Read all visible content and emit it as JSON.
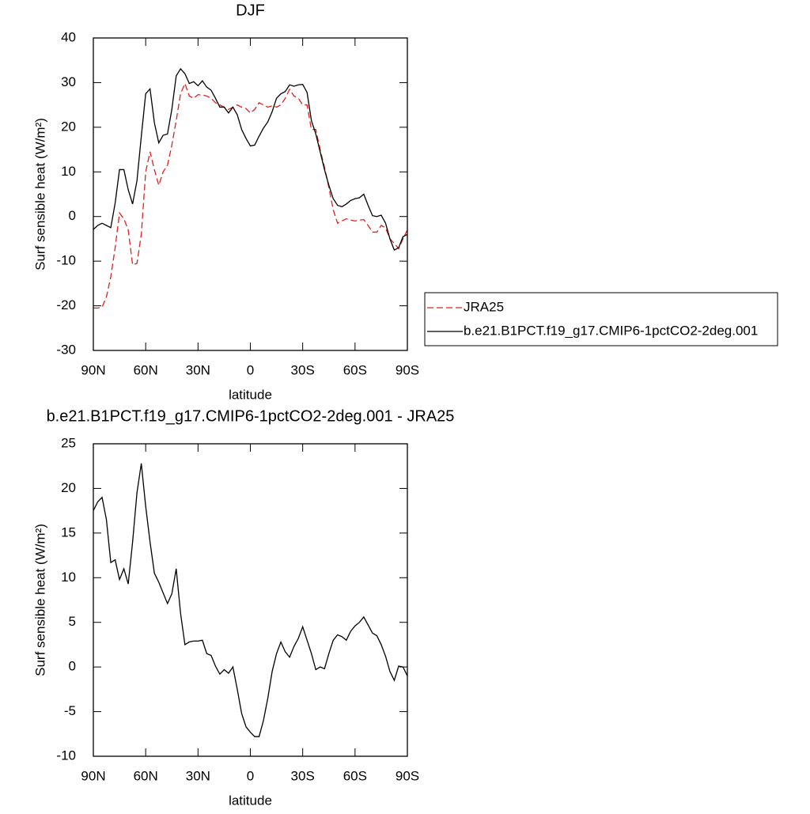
{
  "chart_data": [
    {
      "type": "line",
      "title": "DJF",
      "xlabel": "latitude",
      "ylabel": "Surf sensible heat (W/m²)",
      "x": [
        90,
        87.5,
        85,
        82.5,
        80,
        77.5,
        75,
        72.5,
        70,
        67.5,
        65,
        62.5,
        60,
        57.5,
        55,
        52.5,
        50,
        47.5,
        45,
        42.5,
        40,
        37.5,
        35,
        32.5,
        30,
        27.5,
        25,
        22.5,
        20,
        17.5,
        15,
        12.5,
        10,
        7.5,
        5,
        2.5,
        0,
        -2.5,
        -5,
        -7.5,
        -10,
        -12.5,
        -15,
        -17.5,
        -20,
        -22.5,
        -25,
        -27.5,
        -30,
        -32.5,
        -35,
        -37.5,
        -40,
        -42.5,
        -45,
        -47.5,
        -50,
        -52.5,
        -55,
        -57.5,
        -60,
        -62.5,
        -65,
        -67.5,
        -70,
        -72.5,
        -75,
        -77.5,
        -80,
        -82.5,
        -85,
        -87.5,
        -90
      ],
      "xlim": [
        90,
        -90
      ],
      "xticks": [
        {
          "value": 90,
          "label": "90N"
        },
        {
          "value": 60,
          "label": "60N"
        },
        {
          "value": 30,
          "label": "30N"
        },
        0,
        {
          "value": -30,
          "label": "30S"
        },
        {
          "value": -60,
          "label": "60S"
        },
        {
          "value": -90,
          "label": "90S"
        }
      ],
      "ylim": [
        -30,
        40
      ],
      "yticks": [
        -30,
        -20,
        -10,
        0,
        10,
        20,
        30,
        40
      ],
      "series": [
        {
          "name": "JRA25",
          "color": "#e0201e",
          "dash": true,
          "values": [
            -20.5,
            -20.5,
            -20.3,
            -18,
            -13.5,
            -7,
            0.8,
            -0.5,
            -3,
            -10.8,
            -10.5,
            -4,
            10,
            14.5,
            10.5,
            7,
            10,
            11.5,
            16,
            21.5,
            27.5,
            29.8,
            27,
            26.5,
            27.3,
            27.2,
            27,
            26.5,
            25.5,
            25,
            24.5,
            24,
            24.5,
            25,
            24.5,
            24.2,
            23.2,
            24,
            25.5,
            25,
            24.5,
            24.8,
            24.5,
            25,
            26.5,
            28.5,
            27,
            26.5,
            25,
            25,
            19.5,
            19.5,
            15,
            11,
            6.5,
            1.5,
            -1.5,
            -1,
            -0.5,
            -0.8,
            -1,
            -0.8,
            -0.7,
            -2,
            -3.5,
            -3.5,
            -2,
            -2.5,
            -5,
            -6,
            -7.2,
            -5,
            -3
          ]
        },
        {
          "name": "b.e21.B1PCT.f19_g17.CMIP6-1pctCO2-2deg.001",
          "color": "#000000",
          "dash": false,
          "values": [
            -2.9,
            -2,
            -1.5,
            -2,
            -2.5,
            3,
            10.5,
            10.5,
            6,
            2.8,
            8,
            18,
            27.5,
            28.6,
            21,
            16.5,
            18.2,
            18.5,
            24,
            31.5,
            33.1,
            32,
            29.8,
            30.2,
            29.3,
            30.4,
            29,
            28.3,
            26.5,
            24.5,
            24.5,
            23.2,
            24.5,
            22.8,
            19.5,
            17.5,
            15.8,
            16,
            18,
            19.8,
            21.2,
            23.5,
            26.5,
            27.5,
            28,
            29.5,
            29.2,
            29.5,
            29.6,
            27.8,
            21.5,
            18.5,
            14.5,
            10.5,
            7,
            4,
            2.5,
            2.2,
            2.8,
            3.6,
            4,
            4.2,
            5,
            2.5,
            0.2,
            0,
            0.3,
            -1.5,
            -5,
            -7.5,
            -7,
            -4.5,
            -4
          ]
        }
      ]
    },
    {
      "type": "line",
      "title": "b.e21.B1PCT.f19_g17.CMIP6-1pctCO2-2deg.001 - JRA25",
      "xlabel": "latitude",
      "ylabel": "Surf sensible heat (W/m²)",
      "x": [
        90,
        87.5,
        85,
        82.5,
        80,
        77.5,
        75,
        72.5,
        70,
        67.5,
        65,
        62.5,
        60,
        57.5,
        55,
        52.5,
        50,
        47.5,
        45,
        42.5,
        40,
        37.5,
        35,
        32.5,
        30,
        27.5,
        25,
        22.5,
        20,
        17.5,
        15,
        12.5,
        10,
        7.5,
        5,
        2.5,
        0,
        -2.5,
        -5,
        -7.5,
        -10,
        -12.5,
        -15,
        -17.5,
        -20,
        -22.5,
        -25,
        -27.5,
        -30,
        -32.5,
        -35,
        -37.5,
        -40,
        -42.5,
        -45,
        -47.5,
        -50,
        -52.5,
        -55,
        -57.5,
        -60,
        -62.5,
        -65,
        -67.5,
        -70,
        -72.5,
        -75,
        -77.5,
        -80,
        -82.5,
        -85,
        -87.5,
        -90
      ],
      "xlim": [
        90,
        -90
      ],
      "xticks": [
        {
          "value": 90,
          "label": "90N"
        },
        {
          "value": 60,
          "label": "60N"
        },
        {
          "value": 30,
          "label": "30N"
        },
        0,
        {
          "value": -30,
          "label": "30S"
        },
        {
          "value": -60,
          "label": "60S"
        },
        {
          "value": -90,
          "label": "90S"
        }
      ],
      "ylim": [
        -10,
        25
      ],
      "yticks": [
        -10,
        -5,
        0,
        5,
        10,
        15,
        20,
        25
      ],
      "series": [
        {
          "color": "#000000",
          "dash": false,
          "values": [
            17.5,
            18.5,
            19,
            16.5,
            11.7,
            12,
            9.8,
            11,
            9.3,
            14,
            19.5,
            22.8,
            18,
            14,
            10.5,
            9.5,
            8.3,
            7.1,
            8.2,
            11,
            6,
            2.5,
            2.8,
            2.9,
            2.9,
            3,
            1.5,
            1.3,
            0.1,
            -0.8,
            -0.3,
            -0.7,
            0,
            -2.5,
            -5.2,
            -6.7,
            -7.3,
            -7.8,
            -7.8,
            -6,
            -3.5,
            -0.5,
            1.5,
            2.8,
            1.7,
            1.1,
            2.3,
            3.2,
            4.5,
            3,
            1.5,
            -0.3,
            0,
            -0.2,
            1.5,
            3,
            3.6,
            3.4,
            3,
            4,
            4.6,
            5,
            5.6,
            4.7,
            3.8,
            3.5,
            2.5,
            1.2,
            -0.5,
            -1.5,
            0.1,
            0,
            -1
          ]
        }
      ]
    }
  ]
}
